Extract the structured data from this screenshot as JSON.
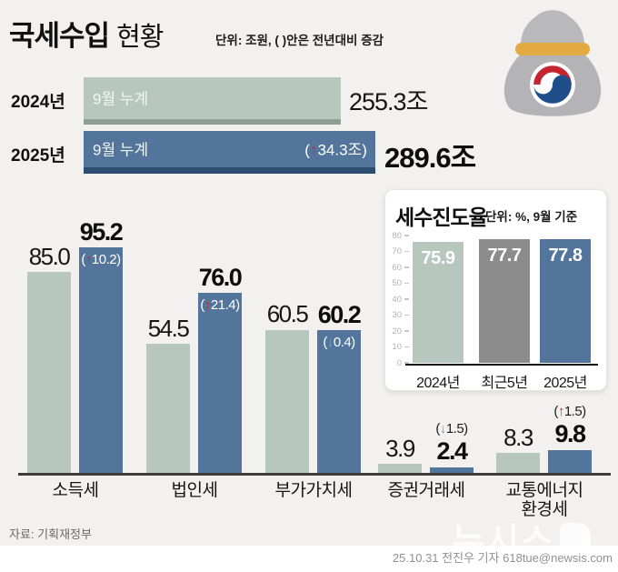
{
  "glyphs": {
    "open": "(",
    "close": ")",
    "up": "↑",
    "down": "↓"
  },
  "header": {
    "title": "국세수입",
    "title_suffix": "현황",
    "unit_note": "단위: 조원, ( )안은 전년대비 증감"
  },
  "summary": {
    "prev": {
      "year": "2024년",
      "bar_text": "9월 누계",
      "value": "255.3조"
    },
    "curr": {
      "year": "2025년",
      "bar_text": "9월 누계",
      "change_value": "34.3조",
      "value": "289.6조"
    }
  },
  "main_chart": {
    "groups": [
      {
        "category": "소득세",
        "prev_label": "85.0",
        "curr_label": "95.2",
        "change": "10.2",
        "dir": "up"
      },
      {
        "category": "법인세",
        "prev_label": "54.5",
        "curr_label": "76.0",
        "change": "21.4",
        "dir": "up"
      },
      {
        "category": "부가가치세",
        "prev_label": "60.5",
        "curr_label": "60.2",
        "change": "0.4",
        "dir": "down"
      },
      {
        "category": "증권거래세",
        "prev_label": "3.9",
        "curr_label": "2.4",
        "change": "1.5",
        "dir": "down"
      },
      {
        "category_line1": "교통에너지",
        "category_line2": "환경세",
        "prev_label": "8.3",
        "curr_label": "9.8",
        "change": "1.5",
        "dir": "up"
      }
    ]
  },
  "inset": {
    "title": "세수진도율",
    "unit_note": "단위: %, 9월 기준",
    "ticks": [
      "80",
      "70",
      "60",
      "50",
      "40",
      "30",
      "20",
      "10",
      "0"
    ],
    "bars": [
      {
        "label": "2024년",
        "value": "75.9"
      },
      {
        "label": "최근5년",
        "value": "77.7"
      },
      {
        "label": "2025년",
        "value": "77.8"
      }
    ]
  },
  "footer": {
    "source": "자료: 기획재정부",
    "credit": "25.10.31 전진우 기자 618tue@newsis.com",
    "watermark": "뉴시스"
  },
  "chart_data": [
    {
      "type": "bar",
      "title": "국세수입 현황",
      "unit": "조원",
      "note": "( )안은 전년대비 증감",
      "categories": [
        "소득세",
        "법인세",
        "부가가치세",
        "증권거래세",
        "교통에너지환경세"
      ],
      "series": [
        {
          "name": "2024년 9월 누계",
          "values": [
            85.0,
            54.5,
            60.5,
            3.9,
            8.3
          ]
        },
        {
          "name": "2025년 9월 누계",
          "values": [
            95.2,
            76.0,
            60.2,
            2.4,
            9.8
          ]
        }
      ],
      "changes_vs_prev_year": [
        10.2,
        21.4,
        -0.4,
        -1.5,
        1.5
      ],
      "totals": {
        "sep_2024": 255.3,
        "sep_2025": 289.6,
        "yoy_change": 34.3
      },
      "legend_position": "none",
      "grid": false
    },
    {
      "type": "bar",
      "title": "세수진도율",
      "unit": "%, 9월 기준",
      "categories": [
        "2024년",
        "최근5년",
        "2025년"
      ],
      "values": [
        75.9,
        77.7,
        77.8
      ],
      "ylim": [
        0,
        80
      ],
      "yticks": [
        0,
        10,
        20,
        30,
        40,
        50,
        60,
        70,
        80
      ],
      "grid": false
    }
  ]
}
